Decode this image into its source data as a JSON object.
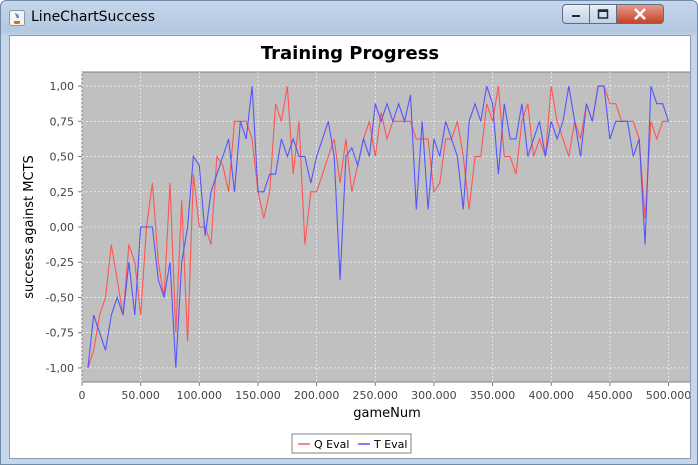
{
  "window": {
    "title": "LineChartSuccess",
    "buttons": [
      "minimize",
      "maximize",
      "close"
    ]
  },
  "chart_data": {
    "type": "line",
    "title": "Training Progress",
    "xlabel": "gameNum",
    "ylabel": "success against MCTS",
    "xlim": [
      0,
      520000
    ],
    "ylim": [
      -1.1,
      1.1
    ],
    "xticks": [
      0,
      50000,
      100000,
      150000,
      200000,
      250000,
      300000,
      350000,
      400000,
      450000,
      500000
    ],
    "xtick_labels": [
      "0",
      "50.000",
      "100.000",
      "150.000",
      "200.000",
      "250.000",
      "300.000",
      "350.000",
      "400.000",
      "450.000",
      "500.000"
    ],
    "yticks": [
      -1.0,
      -0.75,
      -0.5,
      -0.25,
      0.0,
      0.25,
      0.5,
      0.75,
      1.0
    ],
    "ytick_labels": [
      "-1,00",
      "-0,75",
      "-0,50",
      "-0,25",
      "0,00",
      "0,25",
      "0,50",
      "0,75",
      "1,00"
    ],
    "grid": true,
    "legend": "bottom",
    "plot_background": "#c0c0c0",
    "series": [
      {
        "name": "Q Eval",
        "color": "#ff5555",
        "x": [
          5000,
          10000,
          15000,
          20000,
          25000,
          30000,
          35000,
          40000,
          45000,
          50000,
          55000,
          60000,
          65000,
          70000,
          75000,
          80000,
          85000,
          90000,
          95000,
          100000,
          105000,
          110000,
          115000,
          120000,
          125000,
          130000,
          135000,
          140000,
          145000,
          150000,
          155000,
          160000,
          165000,
          170000,
          175000,
          180000,
          185000,
          190000,
          195000,
          200000,
          205000,
          210000,
          215000,
          220000,
          225000,
          230000,
          235000,
          240000,
          245000,
          250000,
          255000,
          260000,
          265000,
          270000,
          275000,
          280000,
          285000,
          290000,
          295000,
          300000,
          305000,
          310000,
          315000,
          320000,
          325000,
          330000,
          335000,
          340000,
          345000,
          350000,
          355000,
          360000,
          365000,
          370000,
          375000,
          380000,
          385000,
          390000,
          395000,
          400000,
          405000,
          410000,
          415000,
          420000,
          425000,
          430000,
          435000,
          440000,
          445000,
          450000,
          455000,
          460000,
          465000,
          470000,
          475000,
          480000,
          485000,
          490000,
          495000,
          500000
        ],
        "values": [
          -1.0,
          -0.875,
          -0.625,
          -0.5,
          -0.125,
          -0.375,
          -0.625,
          -0.125,
          -0.25,
          -0.625,
          0.0,
          0.3125,
          -0.25,
          -0.5,
          0.3125,
          -0.75,
          0.1875,
          -0.8125,
          0.375,
          0.0,
          0.0,
          -0.125,
          0.5,
          0.4375,
          0.25,
          0.75,
          0.75,
          0.75,
          0.625,
          0.25,
          0.0625,
          0.25,
          0.875,
          0.75,
          1.0,
          0.375,
          0.75,
          -0.125,
          0.25,
          0.25,
          0.375,
          0.5,
          0.625,
          0.3125,
          0.625,
          0.25,
          0.4375,
          0.625,
          0.75,
          0.5,
          0.8125,
          0.625,
          0.75,
          0.75,
          0.75,
          0.75,
          0.625,
          0.625,
          0.625,
          0.25,
          0.3125,
          0.625,
          0.625,
          0.75,
          0.5,
          0.125,
          0.5,
          0.5,
          0.875,
          0.75,
          1.0,
          0.5,
          0.5,
          0.375,
          0.75,
          0.875,
          0.5,
          0.625,
          0.5,
          1.0,
          0.75,
          0.625,
          0.5,
          0.75,
          0.625,
          0.875,
          0.75,
          1.0,
          1.0,
          0.875,
          0.875,
          0.75,
          0.75,
          0.75,
          0.625,
          0.0625,
          0.75,
          0.625,
          0.75,
          0.75
        ]
      },
      {
        "name": "T Eval",
        "color": "#5555ff",
        "x": [
          5000,
          10000,
          15000,
          20000,
          25000,
          30000,
          35000,
          40000,
          45000,
          50000,
          55000,
          60000,
          65000,
          70000,
          75000,
          80000,
          85000,
          90000,
          95000,
          100000,
          105000,
          110000,
          115000,
          120000,
          125000,
          130000,
          135000,
          140000,
          145000,
          150000,
          155000,
          160000,
          165000,
          170000,
          175000,
          180000,
          185000,
          190000,
          195000,
          200000,
          205000,
          210000,
          215000,
          220000,
          225000,
          230000,
          235000,
          240000,
          245000,
          250000,
          255000,
          260000,
          265000,
          270000,
          275000,
          280000,
          285000,
          290000,
          295000,
          300000,
          305000,
          310000,
          315000,
          320000,
          325000,
          330000,
          335000,
          340000,
          345000,
          350000,
          355000,
          360000,
          365000,
          370000,
          375000,
          380000,
          385000,
          390000,
          395000,
          400000,
          405000,
          410000,
          415000,
          420000,
          425000,
          430000,
          435000,
          440000,
          445000,
          450000,
          455000,
          460000,
          465000,
          470000,
          475000,
          480000,
          485000,
          490000,
          495000,
          500000
        ],
        "values": [
          -1.0,
          -0.625,
          -0.75,
          -0.875,
          -0.625,
          -0.5,
          -0.625,
          -0.25,
          -0.625,
          0.0,
          0.0,
          0.0,
          -0.375,
          -0.5,
          -0.25,
          -1.0,
          -0.25,
          0.0,
          0.5,
          0.4375,
          -0.0625,
          0.25,
          0.375,
          0.5,
          0.625,
          0.25,
          0.75,
          0.625,
          1.0,
          0.25,
          0.25,
          0.375,
          0.375,
          0.625,
          0.5,
          0.625,
          0.5,
          0.5,
          0.3125,
          0.5,
          0.625,
          0.75,
          0.5,
          -0.375,
          0.5,
          0.5625,
          0.4375,
          0.625,
          0.5,
          0.875,
          0.75,
          0.875,
          0.75,
          0.875,
          0.75,
          0.9375,
          0.125,
          0.75,
          0.125,
          0.625,
          0.5,
          0.75,
          0.625,
          0.5,
          0.125,
          0.75,
          0.875,
          0.75,
          1.0,
          0.875,
          0.375,
          0.875,
          0.625,
          0.625,
          0.875,
          0.5,
          0.625,
          0.75,
          0.5,
          0.75,
          0.625,
          0.75,
          1.0,
          0.75,
          0.5,
          0.875,
          0.75,
          1.0,
          1.0,
          0.625,
          0.75,
          0.75,
          0.75,
          0.5,
          0.625,
          -0.125,
          1.0,
          0.875,
          0.875,
          0.75
        ]
      }
    ]
  }
}
